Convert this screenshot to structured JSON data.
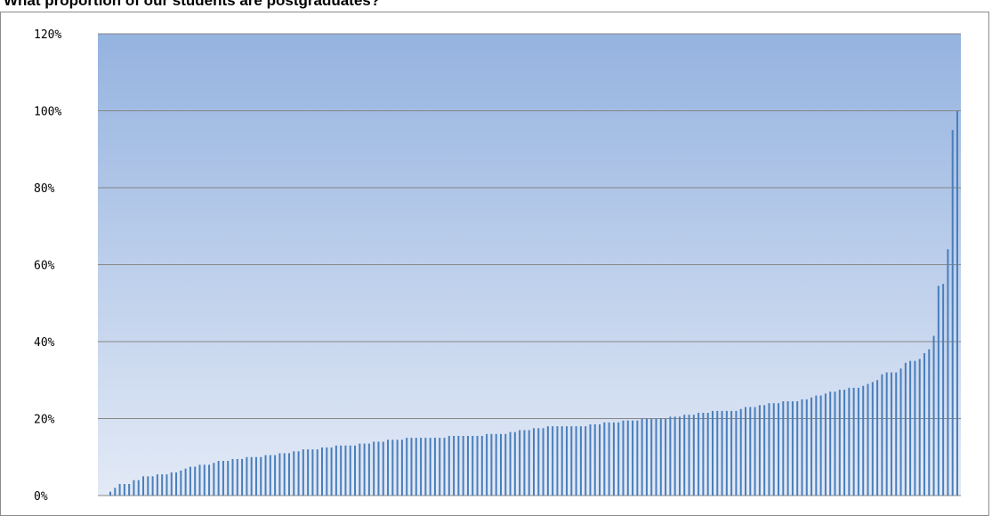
{
  "chart_data": {
    "type": "bar",
    "title": "What proportion of our students are postgraduates?",
    "xlabel": "",
    "ylabel": "",
    "ylim": [
      0,
      120
    ],
    "y_unit": "%",
    "yticks": [
      "0%",
      "20%",
      "40%",
      "60%",
      "80%",
      "100%",
      "120%"
    ],
    "grid": true,
    "legend": "none",
    "series": [
      {
        "values": [
          1,
          2,
          3,
          3,
          3,
          4,
          4,
          5,
          5,
          5,
          5.5,
          5.5,
          5.5,
          6,
          6,
          6.5,
          7,
          7.5,
          7.5,
          8,
          8,
          8,
          8.5,
          9,
          9,
          9,
          9.5,
          9.5,
          9.5,
          10,
          10,
          10,
          10,
          10.5,
          10.5,
          10.5,
          11,
          11,
          11,
          11.5,
          11.5,
          12,
          12,
          12,
          12,
          12.5,
          12.5,
          12.5,
          13,
          13,
          13,
          13,
          13,
          13.5,
          13.5,
          13.5,
          14,
          14,
          14,
          14.5,
          14.5,
          14.5,
          14.5,
          15,
          15,
          15,
          15,
          15,
          15,
          15,
          15,
          15,
          15.5,
          15.5,
          15.5,
          15.5,
          15.5,
          15.5,
          15.5,
          15.5,
          16,
          16,
          16,
          16,
          16,
          16.5,
          16.5,
          17,
          17,
          17,
          17.5,
          17.5,
          17.5,
          18,
          18,
          18,
          18,
          18,
          18,
          18,
          18,
          18,
          18.5,
          18.5,
          18.5,
          19,
          19,
          19,
          19,
          19.5,
          19.5,
          19.5,
          19.5,
          20,
          20,
          20,
          20,
          20,
          20,
          20.5,
          20.5,
          20.5,
          21,
          21,
          21,
          21.5,
          21.5,
          21.5,
          22,
          22,
          22,
          22,
          22,
          22,
          22.5,
          23,
          23,
          23,
          23.5,
          23.5,
          24,
          24,
          24,
          24.5,
          24.5,
          24.5,
          24.5,
          25,
          25,
          25.5,
          26,
          26,
          26.5,
          27,
          27,
          27.5,
          27.5,
          28,
          28,
          28,
          28.5,
          29,
          29.5,
          30,
          31.5,
          32,
          32,
          32,
          33,
          34.5,
          35,
          35,
          35.5,
          37,
          38,
          41.5,
          54.5,
          55,
          64,
          95,
          100
        ]
      }
    ]
  },
  "colors": {
    "bar": "#4a7ebb",
    "bg_top": "#95b3e0",
    "bg_bottom": "#e3eaf6",
    "grid": "#868686"
  }
}
